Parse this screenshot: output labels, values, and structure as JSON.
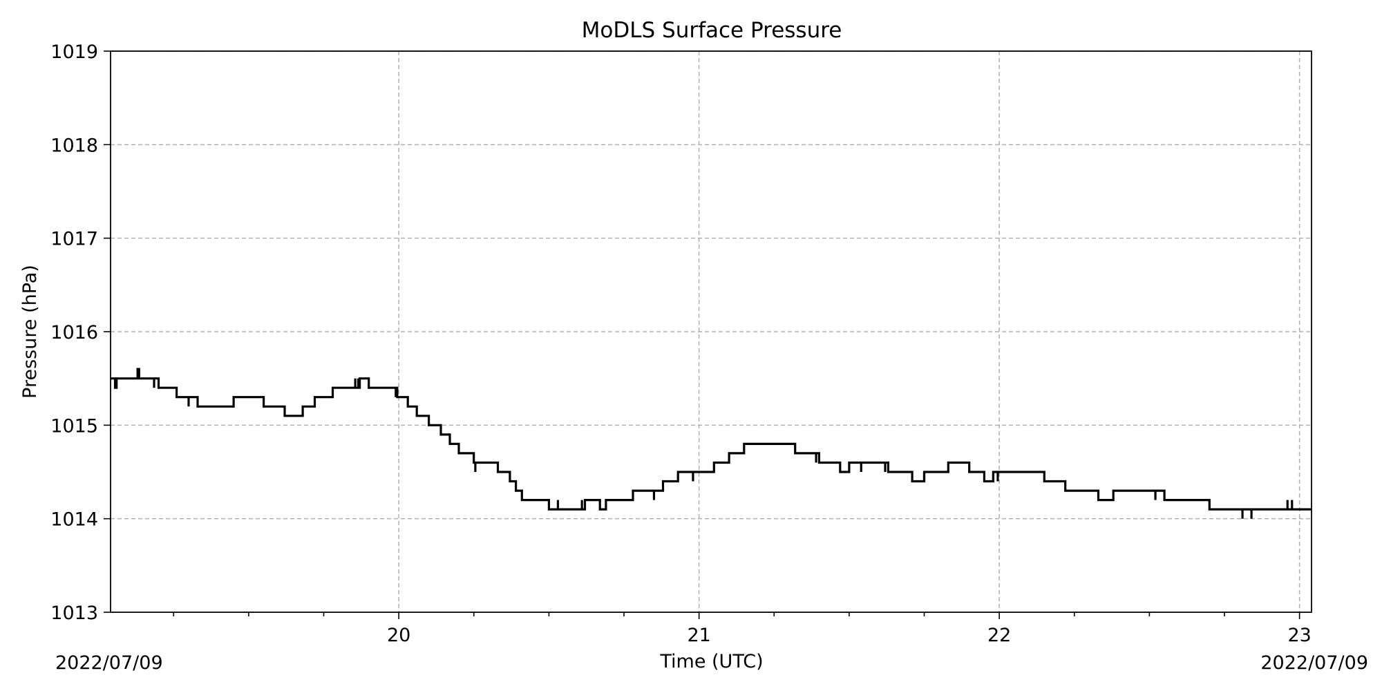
{
  "chart_data": {
    "type": "line",
    "title": "MoDLS Surface Pressure",
    "xlabel": "Time (UTC)",
    "ylabel": "Pressure (hPa)",
    "x_units": "hour of day (UTC), 2022/07/09",
    "date_label_left": "2022/07/09",
    "date_label_right": "2022/07/09",
    "xlim": [
      19.04,
      23.04
    ],
    "ylim": [
      1013,
      1019
    ],
    "x_major_ticks": [
      20,
      21,
      22,
      23
    ],
    "x_tick_labels": [
      "20",
      "21",
      "22",
      "23"
    ],
    "x_minor_ticks": [
      19.25,
      19.5,
      19.75,
      20.25,
      20.5,
      20.75,
      21.25,
      21.5,
      21.75,
      22.25,
      22.5,
      22.75
    ],
    "y_ticks": [
      1013,
      1014,
      1015,
      1016,
      1017,
      1018,
      1019
    ],
    "y_tick_labels": [
      "1013",
      "1014",
      "1015",
      "1016",
      "1017",
      "1018",
      "1019"
    ],
    "grid": true,
    "colors": {
      "series": "#000000",
      "grid": "#b0b0b0"
    },
    "series": [
      {
        "step": true,
        "x": [
          19.04,
          19.055,
          19.06,
          19.13,
          19.135,
          19.1,
          19.145,
          19.2,
          19.215,
          19.24,
          19.26,
          19.3,
          19.31,
          19.33,
          19.38,
          19.45,
          19.5,
          19.55,
          19.62,
          19.68,
          19.72,
          19.78,
          19.85,
          19.87,
          19.9,
          19.98,
          19.995,
          20.01,
          20.03,
          20.06,
          20.1,
          20.14,
          20.17,
          20.2,
          20.25,
          20.27,
          20.3,
          20.33,
          20.37,
          20.39,
          20.41,
          20.45,
          20.5,
          20.52,
          20.54,
          20.6,
          20.62,
          20.64,
          20.67,
          20.69,
          20.72,
          20.78,
          20.81,
          20.84,
          20.88,
          20.93,
          20.96,
          20.98,
          21.0,
          21.05,
          21.1,
          21.15,
          21.19,
          21.24,
          21.32,
          21.4,
          21.43,
          21.47,
          21.5,
          21.55,
          21.58,
          21.63,
          21.66,
          21.71,
          21.75,
          21.79,
          21.83,
          21.9,
          21.95,
          21.98,
          22.04,
          22.1,
          22.15,
          22.22,
          22.25,
          22.29,
          22.33,
          22.38,
          22.4,
          22.45,
          22.5,
          22.55,
          22.6,
          22.7,
          22.8,
          22.85,
          22.9,
          22.95,
          23.0,
          23.04
        ],
        "values": [
          1015.5,
          1015.4,
          1015.5,
          1015.6,
          1015.5,
          1015.5,
          1015.5,
          1015.4,
          1015.4,
          1015.4,
          1015.3,
          1015.3,
          1015.3,
          1015.2,
          1015.2,
          1015.3,
          1015.3,
          1015.2,
          1015.1,
          1015.2,
          1015.3,
          1015.4,
          1015.4,
          1015.5,
          1015.4,
          1015.4,
          1015.3,
          1015.3,
          1015.2,
          1015.1,
          1015.0,
          1014.9,
          1014.8,
          1014.7,
          1014.6,
          1014.6,
          1014.6,
          1014.5,
          1014.4,
          1014.3,
          1014.2,
          1014.2,
          1014.1,
          1014.1,
          1014.1,
          1014.1,
          1014.2,
          1014.2,
          1014.1,
          1014.2,
          1014.2,
          1014.3,
          1014.3,
          1014.3,
          1014.4,
          1014.5,
          1014.5,
          1014.5,
          1014.5,
          1014.6,
          1014.7,
          1014.8,
          1014.8,
          1014.8,
          1014.7,
          1014.6,
          1014.6,
          1014.5,
          1014.6,
          1014.6,
          1014.6,
          1014.5,
          1014.5,
          1014.4,
          1014.5,
          1014.5,
          1014.6,
          1014.5,
          1014.4,
          1014.5,
          1014.5,
          1014.5,
          1014.4,
          1014.3,
          1014.3,
          1014.3,
          1014.2,
          1014.3,
          1014.3,
          1014.3,
          1014.3,
          1014.2,
          1014.2,
          1014.1,
          1014.1,
          1014.1,
          1014.1,
          1014.1,
          1014.1,
          1014.1
        ],
        "spikes": [
          {
            "x": 19.055,
            "value": 1015.4
          },
          {
            "x": 19.185,
            "value": 1015.4
          },
          {
            "x": 19.3,
            "value": 1015.2
          },
          {
            "x": 19.855,
            "value": 1015.5
          },
          {
            "x": 19.865,
            "value": 1015.5
          },
          {
            "x": 19.99,
            "value": 1015.3
          },
          {
            "x": 20.255,
            "value": 1014.5
          },
          {
            "x": 20.32,
            "value": 1014.6
          },
          {
            "x": 20.53,
            "value": 1014.2
          },
          {
            "x": 20.61,
            "value": 1014.2
          },
          {
            "x": 20.68,
            "value": 1014.1
          },
          {
            "x": 20.85,
            "value": 1014.2
          },
          {
            "x": 20.98,
            "value": 1014.4
          },
          {
            "x": 21.39,
            "value": 1014.6
          },
          {
            "x": 21.54,
            "value": 1014.5
          },
          {
            "x": 21.62,
            "value": 1014.5
          },
          {
            "x": 21.73,
            "value": 1014.4
          },
          {
            "x": 21.75,
            "value": 1014.4
          },
          {
            "x": 21.98,
            "value": 1014.4
          },
          {
            "x": 21.995,
            "value": 1014.4
          },
          {
            "x": 22.25,
            "value": 1014.3
          },
          {
            "x": 22.35,
            "value": 1014.2
          },
          {
            "x": 22.52,
            "value": 1014.2
          },
          {
            "x": 22.57,
            "value": 1014.2
          },
          {
            "x": 22.81,
            "value": 1014.0
          },
          {
            "x": 22.84,
            "value": 1014.0
          },
          {
            "x": 22.96,
            "value": 1014.2
          },
          {
            "x": 22.975,
            "value": 1014.2
          }
        ]
      }
    ]
  }
}
